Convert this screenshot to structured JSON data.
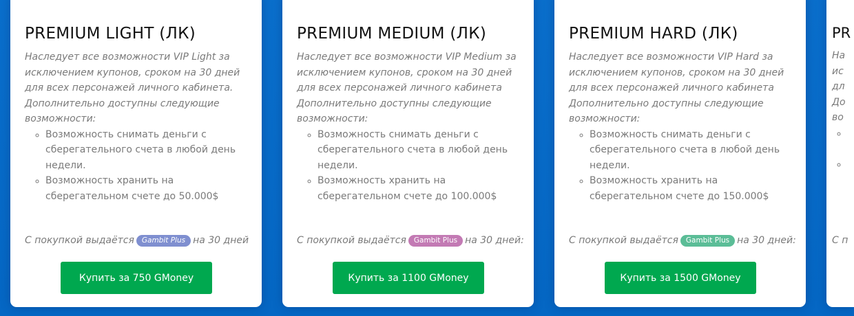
{
  "colors": {
    "background": "#0a6fcc",
    "button": "#00a84f"
  },
  "cards": [
    {
      "title": "PREMIUM LIGHT (ЛК)",
      "description": "Наследует все возможности VIP Light за исключением купонов, сроком на 30 дней для всех персонажей личного кабинета. Дополнительно доступны следующие возможности:",
      "features": [
        "Возможность снимать деньги с сберегательного счета в любой день недели.",
        "Возможность хранить на сберегательном счете до 50.000$"
      ],
      "footer_prefix": "С покупкой выдаётся",
      "badge": "Gambit Plus",
      "badge_color": "#7f8fd0",
      "badge_italic": true,
      "footer_suffix": "на 30 дней",
      "button": "Купить за 750 GMoney"
    },
    {
      "title": "PREMIUM MEDIUM (ЛК)",
      "description": "Наследует все возможности VIP Medium за исключением купонов, сроком на 30 дней для всех персонажей личного кабинета Дополнительно доступны следующие возможности:",
      "features": [
        "Возможность снимать деньги с сберегательного счета в любой день недели.",
        "Возможность хранить на сберегательном счете до 100.000$"
      ],
      "footer_prefix": "С покупкой выдаётся",
      "badge": "Gambit Plus",
      "badge_color": "#c37ab4",
      "footer_suffix": "на 30 дней:",
      "button": "Купить за 1100 GMoney"
    },
    {
      "title": "PREMIUM HARD (ЛК)",
      "description": "Наследует все возможности VIP Hard за исключением купонов, сроком на 30 дней для всех персонажей личного кабинета Дополнительно доступны следующие возможности:",
      "features": [
        "Возможность снимать деньги с сберегательного счета в любой день недели.",
        "Возможность хранить на сберегательном счете до 150.000$"
      ],
      "footer_prefix": "С покупкой выдаётся",
      "badge": "Gambit Plus",
      "badge_color": "#5bbd97",
      "footer_suffix": "на 30 дней:",
      "button": "Купить за 1500 GMoney"
    },
    {
      "title": "PR",
      "description_lines": [
        "На",
        "ис",
        "дл",
        "До",
        "во"
      ],
      "features": [
        "",
        ""
      ],
      "footer_prefix": "С п"
    }
  ]
}
